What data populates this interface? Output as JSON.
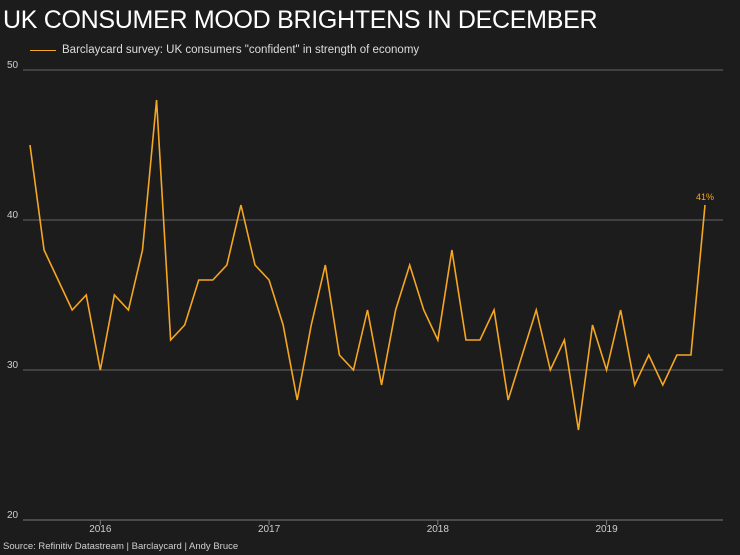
{
  "chart_data": {
    "type": "line",
    "title": "UK CONSUMER MOOD BRIGHTENS IN DECEMBER",
    "series": [
      {
        "name": "Barclaycard survey: UK consumers \"confident\" in strength of economy",
        "color": "#f5a623",
        "values": [
          45,
          38,
          36,
          34,
          35,
          30,
          35,
          34,
          38,
          48,
          32,
          33,
          36,
          36,
          37,
          41,
          37,
          36,
          33,
          28,
          33,
          37,
          31,
          30,
          34,
          29,
          34,
          37,
          34,
          32,
          38,
          32,
          32,
          34,
          28,
          31,
          34,
          30,
          32,
          26,
          33,
          30,
          34,
          29,
          31,
          29,
          31,
          31,
          41
        ]
      }
    ],
    "x_ticks": [
      {
        "label": "2016",
        "index": 5
      },
      {
        "label": "2017",
        "index": 17
      },
      {
        "label": "2018",
        "index": 29
      },
      {
        "label": "2019",
        "index": 41
      }
    ],
    "y_ticks": [
      "50",
      "40",
      "30",
      "20"
    ],
    "ylim": [
      20,
      50
    ],
    "xlabel": "",
    "ylabel": "",
    "grid": true,
    "annotation": {
      "text": "41%",
      "index": 48,
      "color": "#f5a623"
    },
    "legend_position": "top-left",
    "source": "Source: Refinitiv Datastream | Barclaycard | Andy Bruce"
  }
}
